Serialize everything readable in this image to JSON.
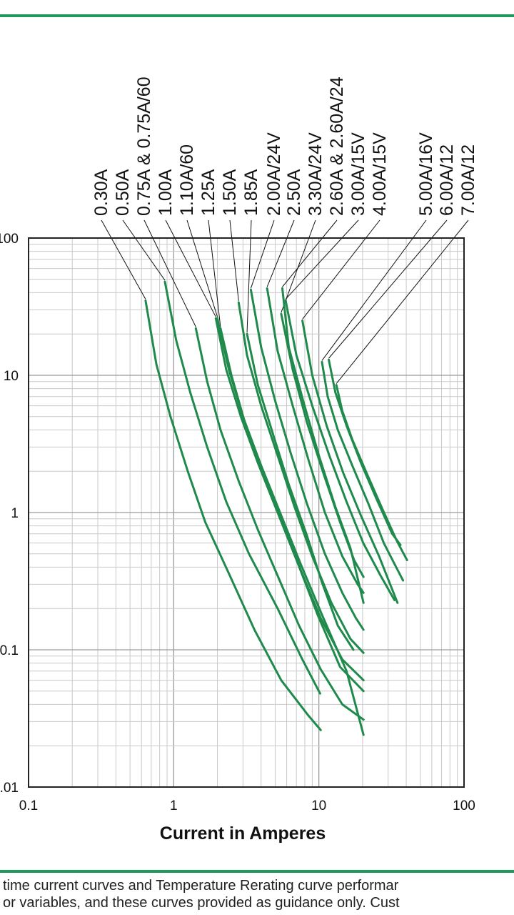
{
  "chart_data": {
    "type": "line",
    "xscale": "log",
    "yscale": "log",
    "xlim": [
      0.1,
      100
    ],
    "ylim": [
      0.01,
      100
    ],
    "grid": true,
    "xlabel": "Current in Amperes",
    "ylabel": "",
    "x_tick_labels": [
      "0.1",
      "1",
      "10",
      "100"
    ],
    "y_tick_labels": [
      "100",
      "10",
      "1",
      "0.1",
      "0.01"
    ],
    "line_color": "#1f8a4c",
    "series": [
      {
        "name": "0.30A",
        "points": [
          [
            0.64,
            35
          ],
          [
            0.76,
            12
          ],
          [
            0.95,
            5
          ],
          [
            1.25,
            2
          ],
          [
            1.65,
            0.85
          ],
          [
            2.4,
            0.36
          ],
          [
            3.6,
            0.14
          ],
          [
            5.5,
            0.06
          ],
          [
            8.5,
            0.033
          ],
          [
            10.3,
            0.026
          ]
        ]
      },
      {
        "name": "0.50A",
        "points": [
          [
            0.87,
            48
          ],
          [
            1.04,
            18
          ],
          [
            1.3,
            7.5
          ],
          [
            1.7,
            3
          ],
          [
            2.3,
            1.2
          ],
          [
            3.3,
            0.5
          ],
          [
            5.2,
            0.2
          ],
          [
            7.7,
            0.085
          ],
          [
            10.2,
            0.048
          ]
        ]
      },
      {
        "name": "0.75A & 0.75A/60",
        "points": [
          [
            1.42,
            22
          ],
          [
            1.7,
            9
          ],
          [
            2.1,
            4
          ],
          [
            2.8,
            1.7
          ],
          [
            3.8,
            0.75
          ],
          [
            5.3,
            0.33
          ],
          [
            7.3,
            0.15
          ],
          [
            10.3,
            0.072
          ],
          [
            14.5,
            0.04
          ],
          [
            20.3,
            0.031
          ]
        ]
      },
      {
        "name": "1.00A",
        "points": [
          [
            1.95,
            26
          ],
          [
            2.3,
            11
          ],
          [
            2.9,
            5
          ],
          [
            3.8,
            2.3
          ],
          [
            5.2,
            1.0
          ],
          [
            7.2,
            0.42
          ],
          [
            9.8,
            0.18
          ],
          [
            14.0,
            0.075
          ],
          [
            20.3,
            0.05
          ]
        ]
      },
      {
        "name": "1.10A/60",
        "points": [
          [
            2.0,
            26
          ],
          [
            2.4,
            11
          ],
          [
            3.0,
            5
          ],
          [
            4.0,
            2.2
          ],
          [
            5.4,
            1.0
          ],
          [
            7.5,
            0.42
          ],
          [
            10.5,
            0.18
          ],
          [
            15.5,
            0.07
          ],
          [
            20.3,
            0.024
          ]
        ]
      },
      {
        "name": "1.25A",
        "points": [
          [
            2.1,
            22
          ],
          [
            2.5,
            10
          ],
          [
            3.1,
            4.5
          ],
          [
            4.1,
            2.0
          ],
          [
            5.5,
            0.9
          ],
          [
            7.5,
            0.38
          ],
          [
            10.3,
            0.17
          ],
          [
            14.5,
            0.085
          ],
          [
            20.3,
            0.06
          ]
        ]
      },
      {
        "name": "1.50A",
        "points": [
          [
            2.8,
            34
          ],
          [
            3.2,
            14
          ],
          [
            4.0,
            6
          ],
          [
            5.2,
            2.6
          ],
          [
            6.8,
            1.1
          ],
          [
            9.0,
            0.48
          ],
          [
            12.2,
            0.22
          ],
          [
            16.5,
            0.12
          ],
          [
            20.3,
            0.095
          ]
        ]
      },
      {
        "name": "1.85A",
        "points": [
          [
            3.2,
            20
          ],
          [
            3.8,
            8.5
          ],
          [
            4.8,
            3.8
          ],
          [
            6.2,
            1.6
          ],
          [
            8.2,
            0.7
          ],
          [
            10.5,
            0.31
          ],
          [
            13.5,
            0.15
          ],
          [
            17.3,
            0.1
          ]
        ]
      },
      {
        "name": "2.00A/24V",
        "points": [
          [
            3.4,
            42
          ],
          [
            4.0,
            16
          ],
          [
            5.0,
            6.5
          ],
          [
            6.4,
            2.7
          ],
          [
            8.3,
            1.15
          ],
          [
            11.0,
            0.5
          ],
          [
            14.5,
            0.26
          ],
          [
            18.0,
            0.17
          ],
          [
            20.3,
            0.14
          ]
        ]
      },
      {
        "name": "2.50A",
        "points": [
          [
            4.4,
            43
          ],
          [
            5.2,
            15
          ],
          [
            6.6,
            6.0
          ],
          [
            8.5,
            2.4
          ],
          [
            11.0,
            1.0
          ],
          [
            14.5,
            0.48
          ],
          [
            18.5,
            0.3
          ],
          [
            20.3,
            0.26
          ]
        ]
      },
      {
        "name": "3.30A/24V",
        "points": [
          [
            5.5,
            28
          ],
          [
            6.6,
            11
          ],
          [
            8.3,
            4.5
          ],
          [
            10.8,
            1.9
          ],
          [
            14.0,
            0.85
          ],
          [
            17.5,
            0.45
          ],
          [
            20.3,
            0.34
          ]
        ]
      },
      {
        "name": "2.60A & 2.60A/24",
        "points": [
          [
            5.6,
            43
          ],
          [
            6.2,
            16
          ],
          [
            7.8,
            6.5
          ],
          [
            10.0,
            2.6
          ],
          [
            13.0,
            1.1
          ],
          [
            16.5,
            0.55
          ],
          [
            20.3,
            0.22
          ]
        ]
      },
      {
        "name": "3.00A/15V",
        "points": [
          [
            5.9,
            35
          ],
          [
            7.0,
            14
          ],
          [
            9.0,
            6
          ],
          [
            11.8,
            2.6
          ],
          [
            15.5,
            1.2
          ],
          [
            20.2,
            0.6
          ],
          [
            26.5,
            0.35
          ],
          [
            33.2,
            0.23
          ]
        ]
      },
      {
        "name": "4.00A/15V",
        "points": [
          [
            7.7,
            25
          ],
          [
            9.0,
            10
          ],
          [
            11.3,
            4.3
          ],
          [
            14.7,
            1.95
          ],
          [
            19.5,
            0.95
          ],
          [
            26.0,
            0.48
          ],
          [
            34.8,
            0.22
          ]
        ]
      },
      {
        "name": "5.00A/16V",
        "points": [
          [
            10.5,
            12.5
          ],
          [
            11.5,
            7
          ],
          [
            13.5,
            4
          ],
          [
            17.0,
            2.2
          ],
          [
            22.0,
            1.15
          ],
          [
            28.0,
            0.6
          ],
          [
            34.5,
            0.39
          ],
          [
            38.0,
            0.32
          ]
        ]
      },
      {
        "name": "6.00A/12",
        "points": [
          [
            11.7,
            13
          ],
          [
            13.0,
            7.5
          ],
          [
            15.5,
            4.3
          ],
          [
            19.5,
            2.3
          ],
          [
            25.0,
            1.25
          ],
          [
            32.0,
            0.7
          ],
          [
            36.5,
            0.58
          ]
        ]
      },
      {
        "name": "7.00A/12",
        "points": [
          [
            13.2,
            8.5
          ],
          [
            14.5,
            5.5
          ],
          [
            17.0,
            3.4
          ],
          [
            21.5,
            1.9
          ],
          [
            27.5,
            1.05
          ],
          [
            34.5,
            0.62
          ],
          [
            40.5,
            0.45
          ]
        ]
      }
    ]
  },
  "footer": {
    "line1": "time current curves and Temperature Rerating curve performar",
    "line2": "or variables, and these curves provided as guidance only. Cust"
  }
}
